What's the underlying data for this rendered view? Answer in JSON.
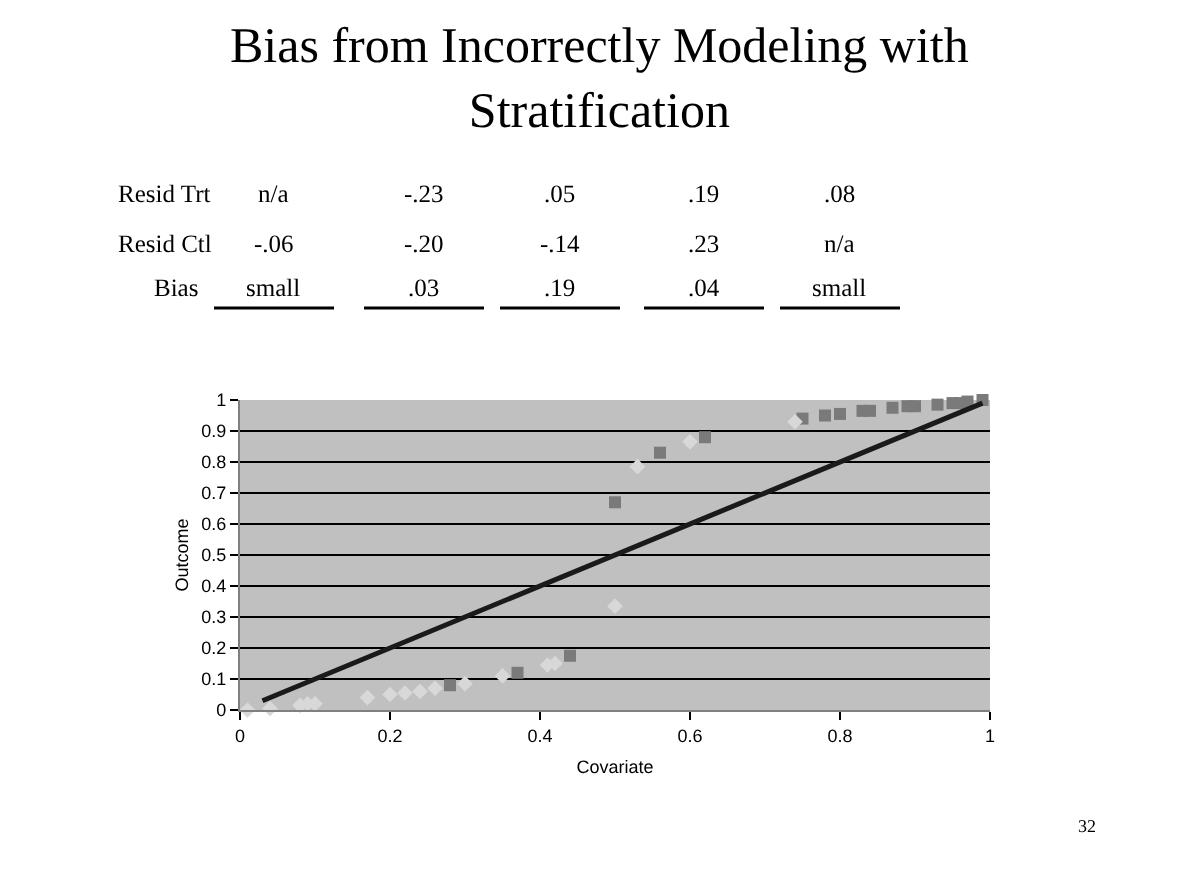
{
  "chart_data": {
    "type": "scatter",
    "title": "Bias from Incorrectly Modeling with Stratification",
    "xlabel": "Covariate",
    "ylabel": "Outcome",
    "annotations": [
      "Resid Trt",
      "n/a",
      "-.23",
      ".05",
      ".19",
      ".08",
      "Resid Ctl",
      "-.06",
      "-.20",
      "-.14",
      ".23",
      "n/a",
      "Bias",
      "small",
      ".03",
      ".19",
      ".04",
      "small",
      "32"
    ],
    "series": [
      {
        "color": "#7a7a7a",
        "marker": "square",
        "x": [
          0.28,
          0.37,
          0.44,
          0.5,
          0.56,
          0.62,
          0.75,
          0.78,
          0.8,
          0.83,
          0.84,
          0.87,
          0.89,
          0.9,
          0.93,
          0.95,
          0.96,
          0.97,
          0.99
        ],
        "values": [
          0.08,
          0.12,
          0.175,
          0.67,
          0.83,
          0.88,
          0.94,
          0.95,
          0.955,
          0.965,
          0.965,
          0.975,
          0.98,
          0.98,
          0.985,
          0.99,
          0.99,
          0.995,
          1.0
        ]
      },
      {
        "color": "#d8d8d8",
        "marker": "diamond",
        "x": [
          0.01,
          0.04,
          0.08,
          0.09,
          0.1,
          0.17,
          0.2,
          0.22,
          0.24,
          0.26,
          0.3,
          0.35,
          0.41,
          0.42,
          0.5,
          0.53,
          0.6,
          0.74
        ],
        "values": [
          0,
          0.005,
          0.015,
          0.02,
          0.02,
          0.04,
          0.05,
          0.055,
          0.06,
          0.07,
          0.085,
          0.11,
          0.145,
          0.15,
          0.335,
          0.785,
          0.865,
          0.93
        ]
      },
      {
        "type": "line",
        "color": "#1a1a1a",
        "marker": "none",
        "x": [
          0.03,
          0.99
        ],
        "values": [
          0.03,
          0.99
        ]
      }
    ],
    "xlim": [
      0,
      1
    ],
    "xticks": [
      0,
      0.2,
      0.4,
      0.6,
      0.8,
      1
    ],
    "ylim": [
      0,
      1
    ],
    "yticks": [
      0,
      0.1,
      0.2,
      0.3,
      0.4,
      0.5,
      0.6,
      0.7,
      0.8,
      0.9,
      1
    ],
    "grid": "y"
  }
}
